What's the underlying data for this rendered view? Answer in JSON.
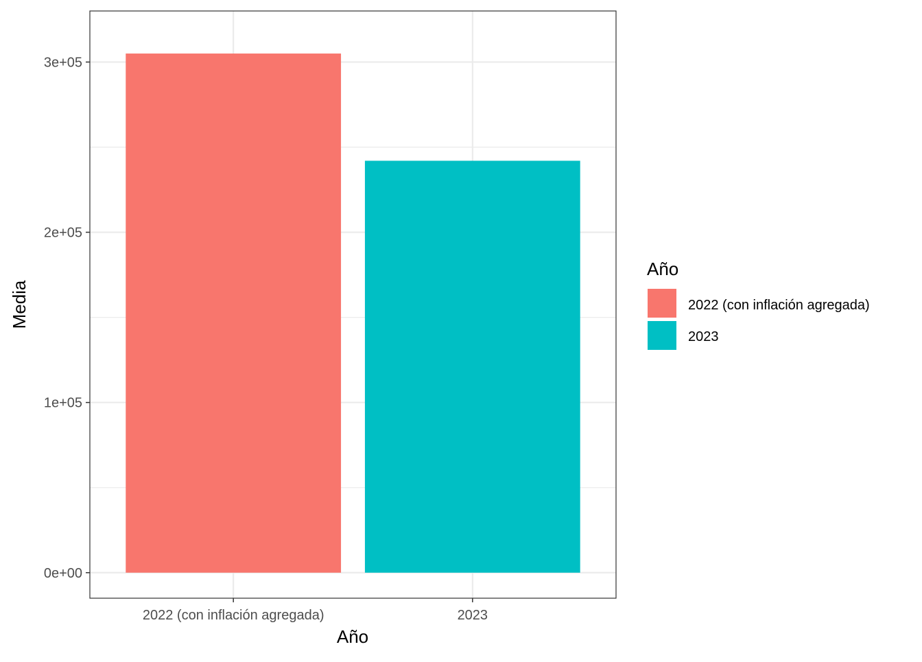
{
  "chart_data": {
    "type": "bar",
    "categories": [
      "2022 (con inflación agregada)",
      "2023"
    ],
    "values": [
      305000,
      242000
    ],
    "colors": [
      "#F8766D",
      "#00BFC4"
    ],
    "xlabel": "Año",
    "ylabel": "Media",
    "ylim": [
      -15000,
      330000
    ],
    "yticks": [
      {
        "value": 0,
        "label": "0e+00"
      },
      {
        "value": 100000,
        "label": "1e+05"
      },
      {
        "value": 200000,
        "label": "2e+05"
      },
      {
        "value": 300000,
        "label": "3e+05"
      }
    ],
    "grid": true,
    "legend": {
      "title": "Año",
      "position": "right",
      "items": [
        {
          "label": "2022 (con inflación agregada)",
          "color": "#F8766D"
        },
        {
          "label": "2023",
          "color": "#00BFC4"
        }
      ]
    }
  }
}
